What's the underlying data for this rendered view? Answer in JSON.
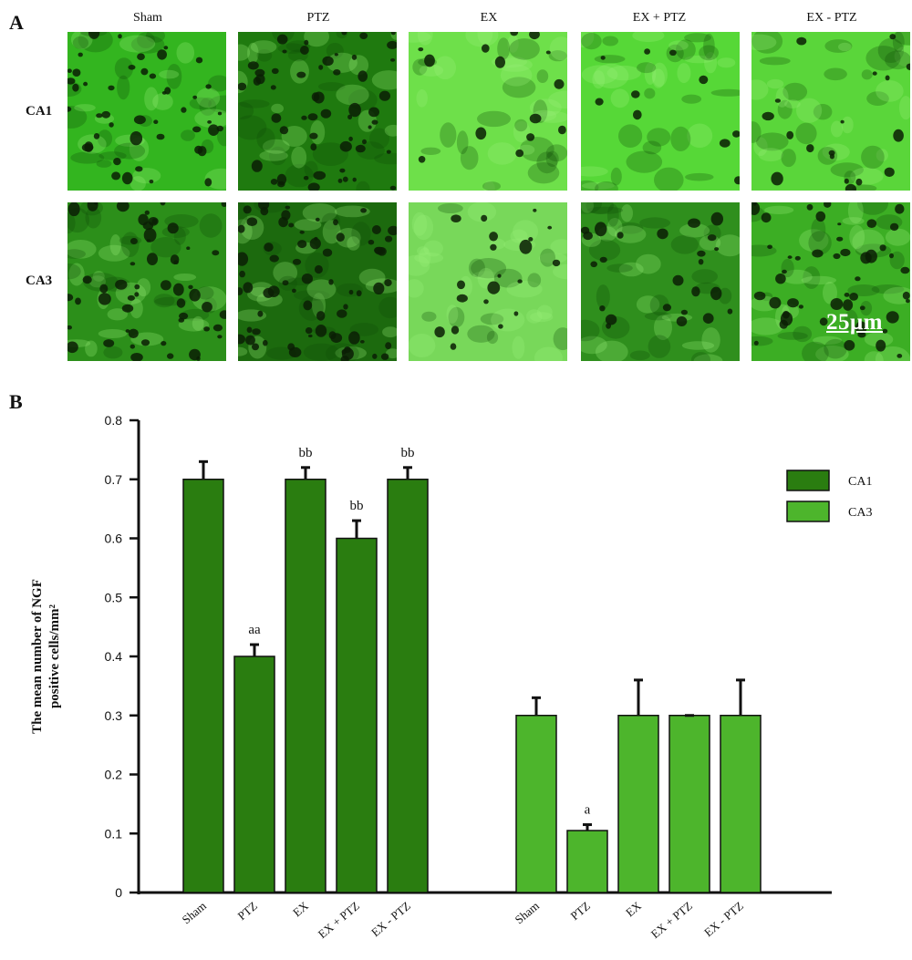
{
  "panel_a": {
    "letter": "A",
    "columns": [
      "Sham",
      "PTZ",
      "EX",
      "EX + PTZ",
      "EX - PTZ"
    ],
    "rows": [
      "CA1",
      "CA3"
    ],
    "scale_bar": "25μm"
  },
  "panel_b": {
    "letter": "B"
  },
  "chart_data": {
    "type": "bar",
    "ylabel_line1": "The mean number of NGF",
    "ylabel_line2": "positive cells/mm²",
    "ylim": [
      0,
      0.8
    ],
    "yticks": [
      "0",
      "0.1",
      "0.2",
      "0.3",
      "0.4",
      "0.5",
      "0.6",
      "0.7",
      "0.8"
    ],
    "categories": [
      "Sham",
      "PTZ",
      "EX",
      "EX + PTZ",
      "EX - PTZ"
    ],
    "legend_position": "top-right",
    "series": [
      {
        "name": "CA1",
        "color": "#2a7d10",
        "values": [
          0.7,
          0.4,
          0.7,
          0.6,
          0.7
        ],
        "errors": [
          0.03,
          0.02,
          0.02,
          0.03,
          0.02
        ],
        "annotations": [
          "",
          "aa",
          "bb",
          "bb",
          "bb"
        ]
      },
      {
        "name": "CA3",
        "color": "#4db52c",
        "values": [
          0.3,
          0.105,
          0.3,
          0.3,
          0.3
        ],
        "errors": [
          0.03,
          0.01,
          0.06,
          0.0,
          0.06
        ],
        "annotations": [
          "",
          "a",
          "",
          "",
          ""
        ]
      }
    ]
  }
}
